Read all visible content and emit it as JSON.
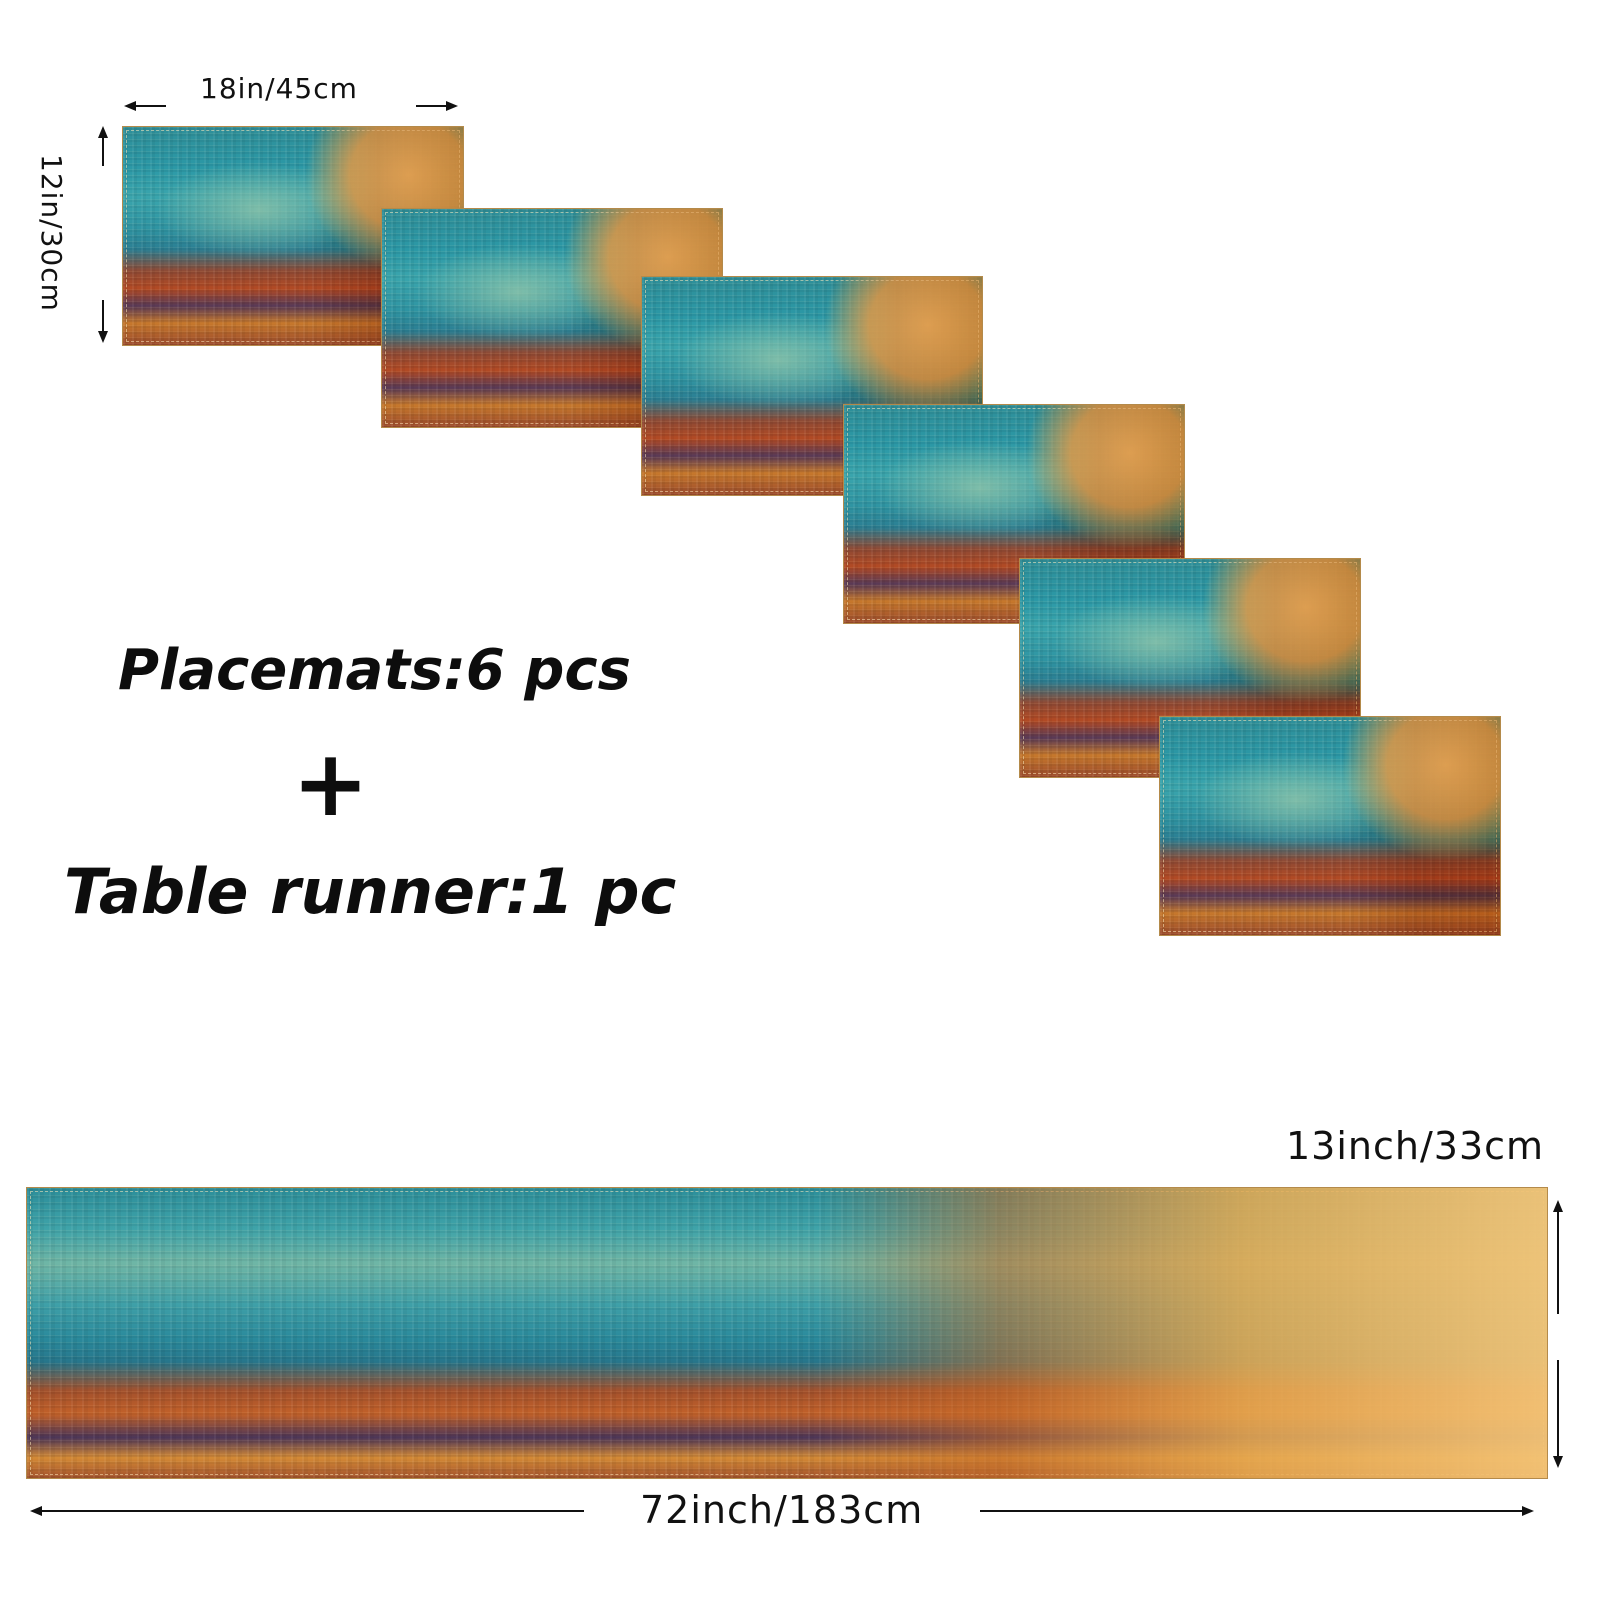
{
  "placemat_dimensions": {
    "width_label": "18in/45cm",
    "height_label": "12in/30cm"
  },
  "headline": {
    "placemats": "Placemats:6 pcs",
    "plus": "+",
    "runner": "Table runner:1 pc"
  },
  "runner_dimensions": {
    "height_label": "13inch/33cm",
    "length_label": "72inch/183cm"
  },
  "colors": {
    "teal": "#2f95a3",
    "mustard": "#eeb25c",
    "rust": "#b24a24",
    "plum": "#5a3a56"
  }
}
